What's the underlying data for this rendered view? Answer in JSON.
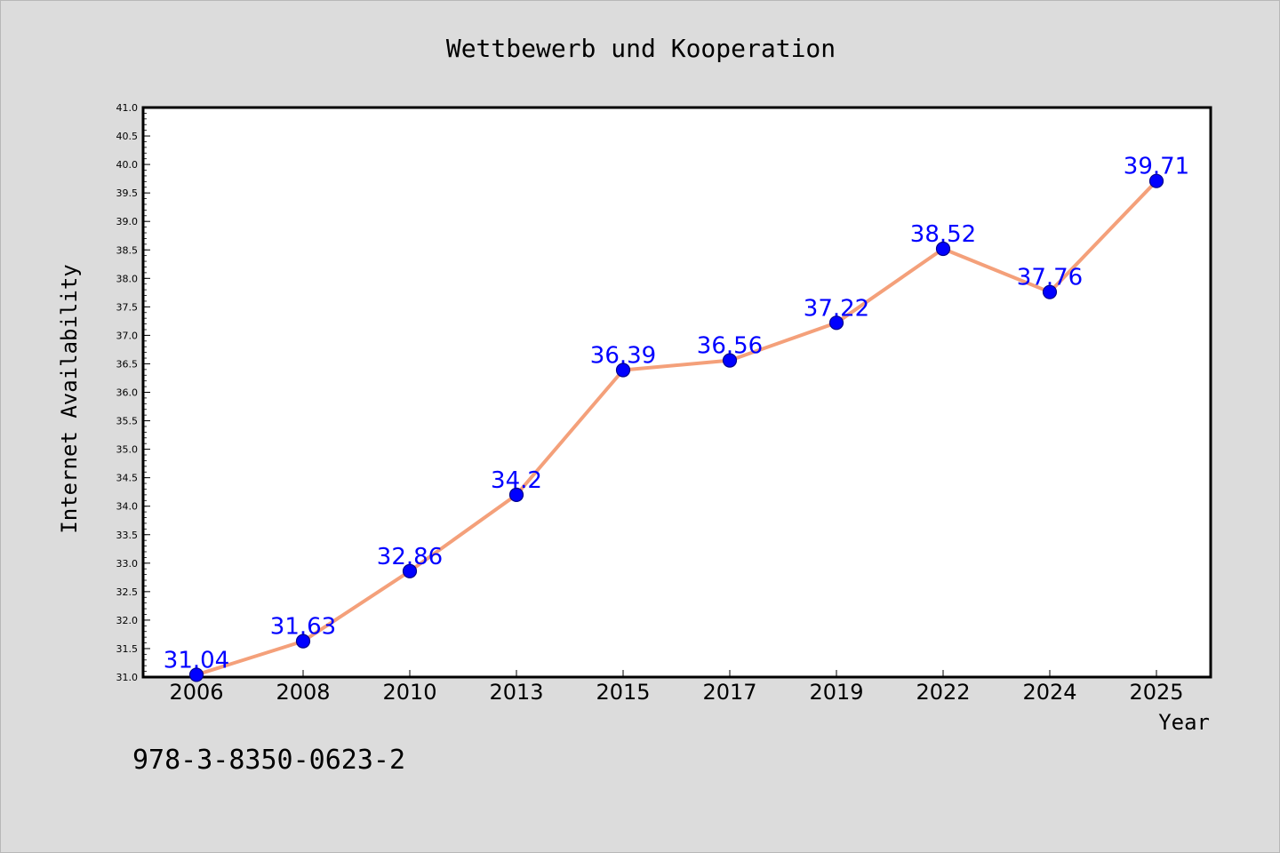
{
  "chart_data": {
    "type": "line",
    "title": "Wettbewerb und Kooperation",
    "xlabel": "Year",
    "ylabel": "Internet Availability",
    "categories": [
      "2006",
      "2008",
      "2010",
      "2013",
      "2015",
      "2017",
      "2019",
      "2022",
      "2024",
      "2025"
    ],
    "series": [
      {
        "values": [
          31.04,
          31.63,
          32.86,
          34.2,
          36.39,
          36.56,
          37.22,
          38.52,
          37.76,
          39.71
        ],
        "labels": [
          "31.04",
          "31.63",
          "32.86",
          "34.2",
          "36.39",
          "36.56",
          "37.22",
          "38.52",
          "37.76",
          "39.71"
        ]
      }
    ],
    "ylim": [
      31.0,
      41.0
    ],
    "yticks": [
      "31.0",
      "31.5",
      "32.0",
      "32.5",
      "33.0",
      "33.5",
      "34.0",
      "34.5",
      "35.0",
      "35.5",
      "36.0",
      "36.5",
      "37.0",
      "37.5",
      "38.0",
      "38.5",
      "39.0",
      "39.5",
      "40.0",
      "40.5",
      "41.0"
    ],
    "grid": false,
    "colors": {
      "line": "#f4a07a",
      "marker": "#0000ff",
      "marker_edge": "#00008b",
      "data_label": "#0000ff",
      "background": "#dcdcdc",
      "plot_background": "#ffffff"
    }
  },
  "footer_code": "978-3-8350-0623-2"
}
